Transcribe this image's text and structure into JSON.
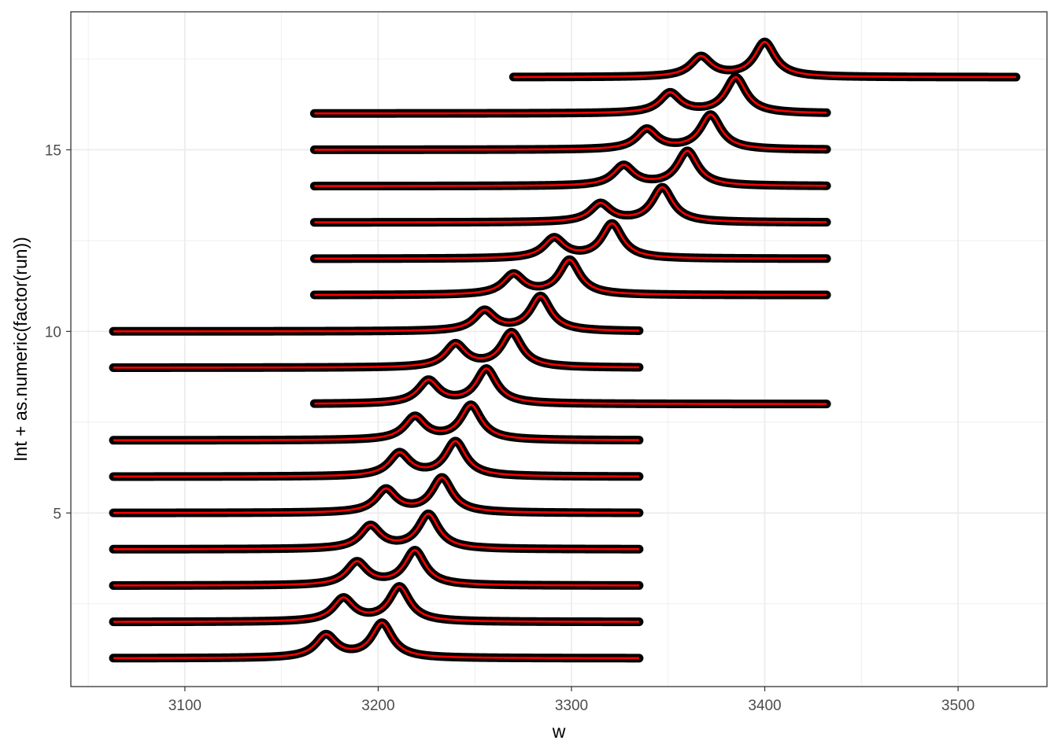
{
  "chart_data": {
    "type": "line",
    "title": "",
    "xlabel": "w",
    "ylabel": "Int + as.numeric(factor(run))",
    "xlim": [
      3041,
      3546
    ],
    "ylim": [
      0.22,
      18.8
    ],
    "x_ticks": [
      3100,
      3200,
      3300,
      3400,
      3500
    ],
    "y_ticks": [
      5,
      10,
      15
    ],
    "grid": true,
    "legend": "none",
    "colors": {
      "points": "#000000",
      "fit_line": "#ff0000",
      "grid": "#ebebeb",
      "panel_border": "#333333"
    },
    "series": [
      {
        "run": 1,
        "x_range": [
          3063,
          3335
        ],
        "baseline": 1,
        "peaks": [
          {
            "x": 3173,
            "height": 0.62
          },
          {
            "x": 3202,
            "height": 0.95
          }
        ]
      },
      {
        "run": 2,
        "x_range": [
          3063,
          3335
        ],
        "baseline": 2,
        "peaks": [
          {
            "x": 3182,
            "height": 0.63
          },
          {
            "x": 3211,
            "height": 0.95
          }
        ]
      },
      {
        "run": 3,
        "x_range": [
          3063,
          3335
        ],
        "baseline": 3,
        "peaks": [
          {
            "x": 3189,
            "height": 0.63
          },
          {
            "x": 3219,
            "height": 0.95
          }
        ]
      },
      {
        "run": 4,
        "x_range": [
          3063,
          3335
        ],
        "baseline": 4,
        "peaks": [
          {
            "x": 3196,
            "height": 0.63
          },
          {
            "x": 3226,
            "height": 0.95
          }
        ]
      },
      {
        "run": 5,
        "x_range": [
          3063,
          3335
        ],
        "baseline": 5,
        "peaks": [
          {
            "x": 3204,
            "height": 0.63
          },
          {
            "x": 3233,
            "height": 0.95
          }
        ]
      },
      {
        "run": 6,
        "x_range": [
          3063,
          3335
        ],
        "baseline": 6,
        "peaks": [
          {
            "x": 3211,
            "height": 0.63
          },
          {
            "x": 3240,
            "height": 0.95
          }
        ]
      },
      {
        "run": 7,
        "x_range": [
          3063,
          3335
        ],
        "baseline": 7,
        "peaks": [
          {
            "x": 3219,
            "height": 0.63
          },
          {
            "x": 3248,
            "height": 0.95
          }
        ]
      },
      {
        "run": 8,
        "x_range": [
          3167,
          3432
        ],
        "baseline": 8,
        "peaks": [
          {
            "x": 3226,
            "height": 0.63
          },
          {
            "x": 3256,
            "height": 0.95
          }
        ]
      },
      {
        "run": 9,
        "x_range": [
          3063,
          3335
        ],
        "baseline": 9,
        "peaks": [
          {
            "x": 3240,
            "height": 0.63
          },
          {
            "x": 3269,
            "height": 0.95
          }
        ]
      },
      {
        "run": 10,
        "x_range": [
          3063,
          3335
        ],
        "baseline": 10,
        "peaks": [
          {
            "x": 3255,
            "height": 0.55
          },
          {
            "x": 3284,
            "height": 0.95
          }
        ]
      },
      {
        "run": 11,
        "x_range": [
          3167,
          3432
        ],
        "baseline": 11,
        "peaks": [
          {
            "x": 3270,
            "height": 0.55
          },
          {
            "x": 3299,
            "height": 0.95
          }
        ]
      },
      {
        "run": 12,
        "x_range": [
          3167,
          3432
        ],
        "baseline": 12,
        "peaks": [
          {
            "x": 3291,
            "height": 0.55
          },
          {
            "x": 3321,
            "height": 0.95
          }
        ]
      },
      {
        "run": 13,
        "x_range": [
          3167,
          3432
        ],
        "baseline": 13,
        "peaks": [
          {
            "x": 3315,
            "height": 0.5
          },
          {
            "x": 3347,
            "height": 0.95
          }
        ]
      },
      {
        "run": 14,
        "x_range": [
          3167,
          3432
        ],
        "baseline": 14,
        "peaks": [
          {
            "x": 3327,
            "height": 0.55
          },
          {
            "x": 3360,
            "height": 0.95
          }
        ]
      },
      {
        "run": 15,
        "x_range": [
          3167,
          3432
        ],
        "baseline": 15,
        "peaks": [
          {
            "x": 3339,
            "height": 0.55
          },
          {
            "x": 3372,
            "height": 0.95
          }
        ]
      },
      {
        "run": 16,
        "x_range": [
          3167,
          3432
        ],
        "baseline": 16,
        "peaks": [
          {
            "x": 3351,
            "height": 0.55
          },
          {
            "x": 3385,
            "height": 0.98
          }
        ]
      },
      {
        "run": 17,
        "x_range": [
          3270,
          3530
        ],
        "baseline": 17,
        "peaks": [
          {
            "x": 3367,
            "height": 0.55
          },
          {
            "x": 3400,
            "height": 0.95
          }
        ]
      }
    ]
  }
}
